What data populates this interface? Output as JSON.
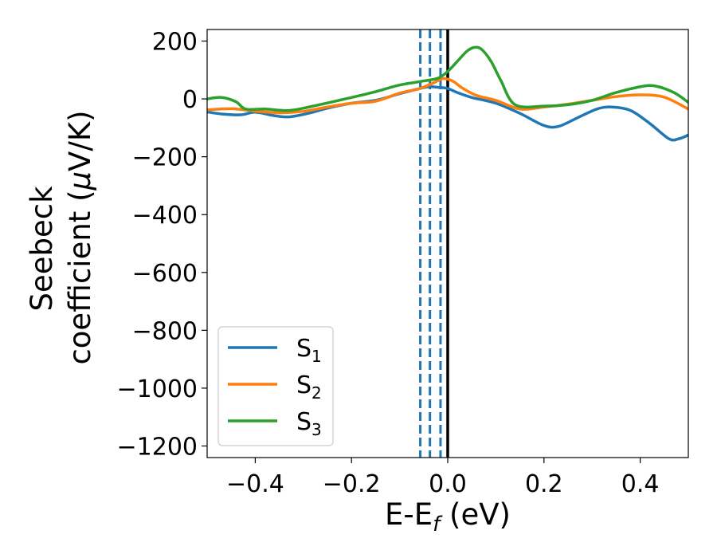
{
  "chart_data": {
    "type": "line",
    "xlabel_main": "E-E",
    "xlabel_sub": "f",
    "xlabel_tail": " (eV)",
    "ylabel_line1": "Seebeck",
    "ylabel_line2_pre": "coefficient  (",
    "ylabel_line2_mu": "μ",
    "ylabel_line2_post": "V/K)",
    "xlim": [
      -0.5,
      0.5
    ],
    "ylim": [
      -1240,
      240
    ],
    "xticks": [
      -0.4,
      -0.2,
      0.0,
      0.2,
      0.4
    ],
    "xtick_labels": [
      "−0.4",
      "−0.2",
      "0.0",
      "0.2",
      "0.4"
    ],
    "yticks": [
      200,
      0,
      -200,
      -400,
      -600,
      -800,
      -1000,
      -1200
    ],
    "ytick_labels": [
      "200",
      "0",
      "−200",
      "−400",
      "−600",
      "−800",
      "−1000",
      "−1200"
    ],
    "grid": false,
    "legend_placement": "lower-left",
    "fermi_line": {
      "x": 0.0,
      "color": "#000000"
    },
    "dashed_lines": {
      "x": [
        -0.057,
        -0.037,
        -0.015
      ],
      "color": "#1f77b4"
    },
    "series": [
      {
        "name": "S",
        "sub": "1",
        "color": "#1f77b4",
        "x": [
          -0.5,
          -0.47,
          -0.43,
          -0.4,
          -0.36,
          -0.33,
          -0.29,
          -0.25,
          -0.2,
          -0.15,
          -0.1,
          -0.06,
          -0.04,
          -0.02,
          0.0,
          0.02,
          0.05,
          0.1,
          0.15,
          0.2,
          0.23,
          0.27,
          0.31,
          0.34,
          0.38,
          0.42,
          0.46,
          0.48,
          0.5
        ],
        "y": [
          -45,
          -52,
          -55,
          -46,
          -58,
          -62,
          -50,
          -32,
          -15,
          -5,
          18,
          35,
          42,
          40,
          36,
          22,
          5,
          -15,
          -50,
          -92,
          -95,
          -65,
          -35,
          -28,
          -40,
          -85,
          -138,
          -138,
          -125
        ]
      },
      {
        "name": "S",
        "sub": "2",
        "color": "#ff7f0e",
        "x": [
          -0.5,
          -0.45,
          -0.4,
          -0.35,
          -0.3,
          -0.25,
          -0.2,
          -0.15,
          -0.1,
          -0.06,
          -0.03,
          -0.01,
          0.01,
          0.03,
          0.06,
          0.1,
          0.15,
          0.2,
          0.25,
          0.3,
          0.35,
          0.4,
          0.45,
          0.5
        ],
        "y": [
          -38,
          -34,
          -42,
          -48,
          -43,
          -28,
          -15,
          -8,
          20,
          35,
          55,
          70,
          62,
          38,
          12,
          -5,
          -35,
          -28,
          -18,
          -5,
          8,
          14,
          6,
          -35
        ]
      },
      {
        "name": "S",
        "sub": "3",
        "color": "#2ca02c",
        "x": [
          -0.5,
          -0.47,
          -0.44,
          -0.42,
          -0.38,
          -0.33,
          -0.28,
          -0.2,
          -0.15,
          -0.1,
          -0.05,
          -0.02,
          0.0,
          0.02,
          0.04,
          0.055,
          0.07,
          0.09,
          0.11,
          0.14,
          0.2,
          0.25,
          0.3,
          0.35,
          0.4,
          0.43,
          0.47,
          0.5
        ],
        "y": [
          0,
          5,
          -10,
          -35,
          -35,
          -40,
          -25,
          5,
          25,
          48,
          62,
          72,
          95,
          130,
          165,
          178,
          172,
          130,
          65,
          -20,
          -25,
          -20,
          -5,
          22,
          42,
          45,
          22,
          -12
        ]
      }
    ]
  }
}
